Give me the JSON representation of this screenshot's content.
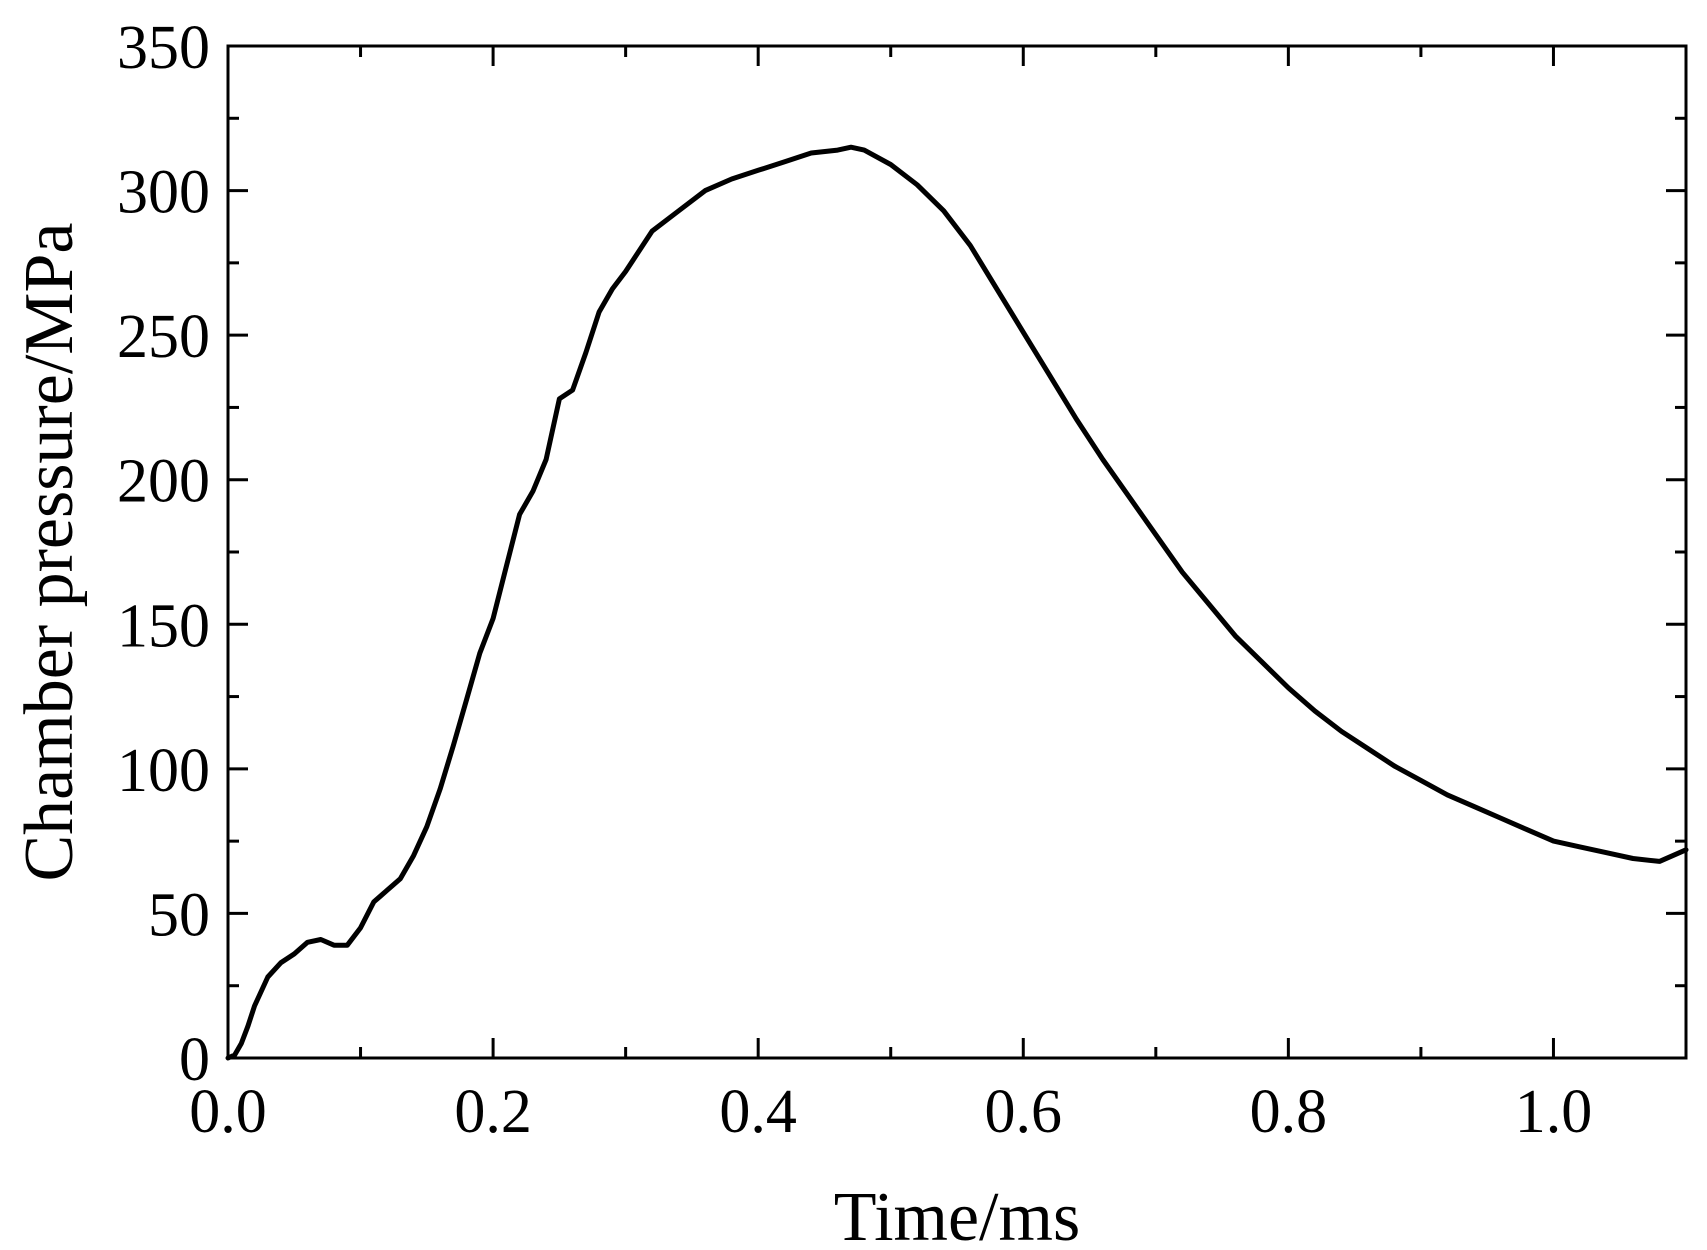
{
  "chart_data": {
    "type": "line",
    "title": "",
    "xlabel": "Time/ms",
    "ylabel": "Chamber pressure/MPa",
    "xlim": [
      0.0,
      1.1
    ],
    "ylim": [
      0,
      350
    ],
    "x_ticks": [
      0.0,
      0.2,
      0.4,
      0.6,
      0.8,
      1.0
    ],
    "x_tick_labels": [
      "0.0",
      "0.2",
      "0.4",
      "0.6",
      "0.8",
      "1.0"
    ],
    "x_minor_ticks": [
      0.1,
      0.3,
      0.5,
      0.7,
      0.9
    ],
    "y_ticks": [
      0,
      50,
      100,
      150,
      200,
      250,
      300,
      350
    ],
    "y_tick_labels": [
      "0",
      "50",
      "100",
      "150",
      "200",
      "250",
      "300",
      "350"
    ],
    "y_minor_ticks": [
      25,
      75,
      125,
      175,
      225,
      275,
      325
    ],
    "grid": false,
    "legend": "none",
    "line_color": "#000000",
    "series": [
      {
        "x": [
          0.0,
          0.005,
          0.01,
          0.015,
          0.02,
          0.03,
          0.04,
          0.05,
          0.06,
          0.07,
          0.08,
          0.09,
          0.1,
          0.11,
          0.12,
          0.13,
          0.14,
          0.15,
          0.16,
          0.17,
          0.18,
          0.19,
          0.2,
          0.21,
          0.22,
          0.23,
          0.24,
          0.25,
          0.26,
          0.27,
          0.28,
          0.29,
          0.3,
          0.32,
          0.34,
          0.36,
          0.38,
          0.4,
          0.42,
          0.44,
          0.46,
          0.47,
          0.48,
          0.5,
          0.52,
          0.54,
          0.56,
          0.58,
          0.6,
          0.62,
          0.64,
          0.66,
          0.68,
          0.7,
          0.72,
          0.74,
          0.76,
          0.78,
          0.8,
          0.82,
          0.84,
          0.86,
          0.88,
          0.9,
          0.92,
          0.94,
          0.96,
          0.98,
          1.0,
          1.02,
          1.04,
          1.06,
          1.08,
          1.1
        ],
        "values": [
          0,
          1,
          5,
          11,
          18,
          28,
          33,
          36,
          40,
          41,
          39,
          39,
          45,
          54,
          58,
          62,
          70,
          80,
          93,
          108,
          124,
          140,
          152,
          170,
          188,
          196,
          207,
          228,
          231,
          244,
          258,
          266,
          272,
          286,
          293,
          300,
          304,
          307,
          310,
          313,
          314,
          315,
          314,
          309,
          302,
          293,
          281,
          266,
          251,
          236,
          221,
          207,
          194,
          181,
          168,
          157,
          146,
          137,
          128,
          120,
          113,
          107,
          101,
          96,
          91,
          87,
          83,
          79,
          75,
          73,
          71,
          69,
          68,
          72
        ]
      }
    ]
  }
}
